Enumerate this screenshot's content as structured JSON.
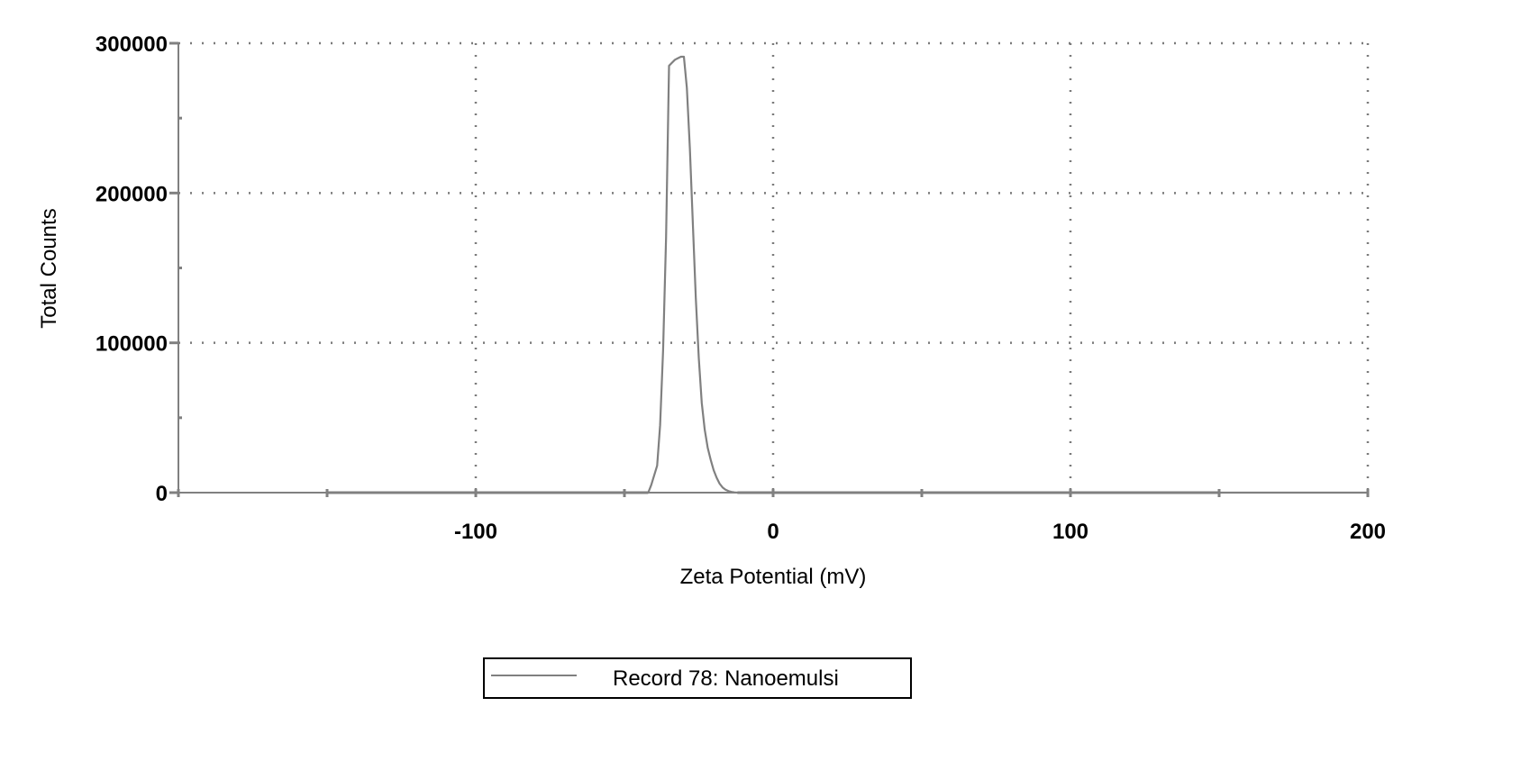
{
  "chart_data": {
    "type": "line",
    "title": "",
    "xlabel": "Zeta Potential (mV)",
    "ylabel": "Total Counts",
    "xlim": [
      -200,
      200
    ],
    "ylim": [
      0,
      300000
    ],
    "x_ticks": [
      -100,
      0,
      100,
      200
    ],
    "x_tick_labels": [
      "-100",
      "0",
      "100",
      "200"
    ],
    "y_ticks": [
      0,
      100000,
      200000,
      300000
    ],
    "y_tick_labels": [
      "0",
      "100000",
      "200000",
      "300000"
    ],
    "grid": true,
    "legend_position": "bottom-center",
    "series": [
      {
        "name": "Record 78: Nanoemulsi",
        "color": "#808080",
        "x": [
          -150,
          -42,
          -41,
          -39,
          -38,
          -37,
          -36,
          -35,
          -34,
          -33,
          -32,
          -31,
          -30,
          -29,
          -28,
          -27,
          -26,
          -25,
          -24,
          -23,
          -22,
          -21,
          -20,
          -19,
          -18,
          -17,
          -16,
          -15,
          -14,
          -13,
          -12,
          -11,
          -10,
          200
        ],
        "y": [
          0,
          0,
          5000,
          18000,
          45000,
          95000,
          170000,
          285000,
          287000,
          289000,
          290000,
          291000,
          291000,
          270000,
          230000,
          180000,
          130000,
          90000,
          60000,
          42000,
          30000,
          22000,
          15000,
          10000,
          6000,
          3500,
          2000,
          1000,
          500,
          200,
          0,
          0,
          0,
          0
        ]
      }
    ]
  }
}
